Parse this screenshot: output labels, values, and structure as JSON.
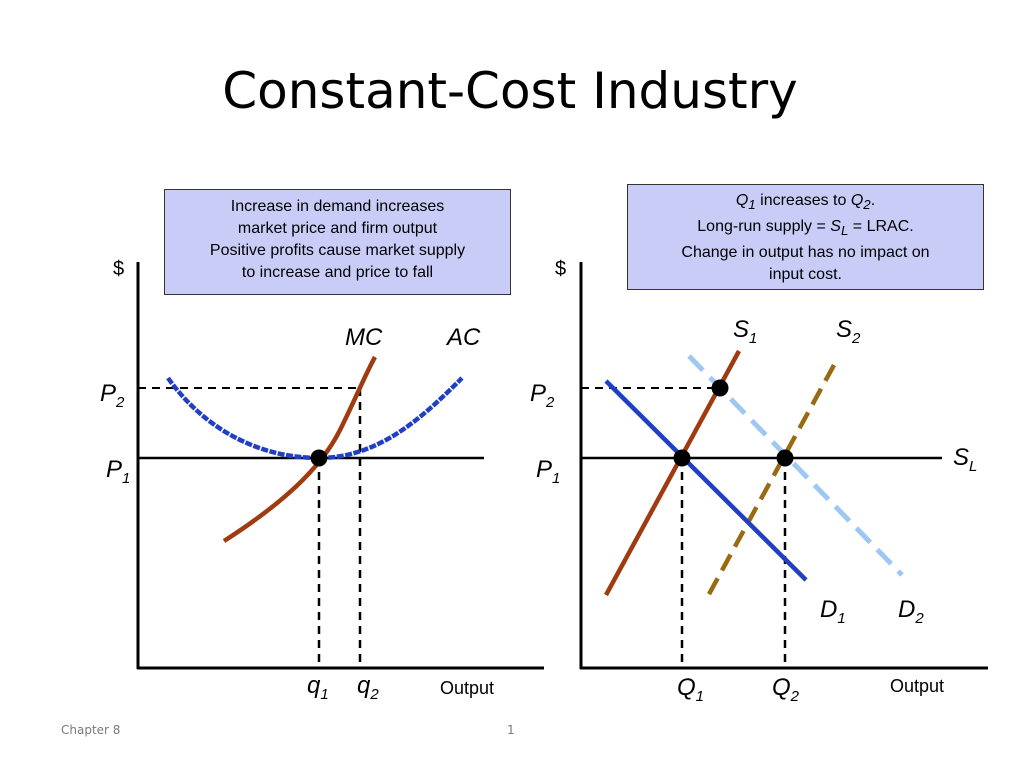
{
  "slide": {
    "title": "Constant-Cost Industry",
    "footer_left": "Chapter 8",
    "footer_page": "1"
  },
  "left_panel": {
    "callout": [
      "Increase in demand increases",
      "market price and firm output",
      "Positive profits cause market supply",
      "to increase and price to fall"
    ],
    "y_axis_label": "$",
    "x_axis_label": "Output",
    "curves": {
      "mc": "MC",
      "ac": "AC"
    },
    "prices": {
      "p2_base": "P",
      "p2_sub": "2",
      "p1_base": "P",
      "p1_sub": "1"
    },
    "quantities": {
      "q1_base": "q",
      "q1_sub": "1",
      "q2_base": "q",
      "q2_sub": "2"
    }
  },
  "right_panel": {
    "callout": {
      "line1_a_base": "Q",
      "line1_a_sub": "1",
      "line1_mid": " increases to ",
      "line1_b_base": "Q",
      "line1_b_sub": "2",
      "line1_end": ".",
      "line2_prefix": "Long-run supply = ",
      "line2_s_base": "S",
      "line2_s_sub": "L",
      "line2_suffix": " = LRAC.",
      "line3": "Change in output has no impact on",
      "line4": "input cost."
    },
    "y_axis_label": "$",
    "x_axis_label": "Output",
    "prices": {
      "p2_base": "P",
      "p2_sub": "2",
      "p1_base": "P",
      "p1_sub": "1"
    },
    "curves": {
      "s1_base": "S",
      "s1_sub": "1",
      "s2_base": "S",
      "s2_sub": "2",
      "sl_base": "S",
      "sl_sub": "L",
      "d1_base": "D",
      "d1_sub": "1",
      "d2_base": "D",
      "d2_sub": "2"
    },
    "quantities": {
      "q1_base": "Q",
      "q1_sub": "1",
      "q2_base": "Q",
      "q2_sub": "2"
    }
  },
  "colors": {
    "demand_1": "#1f3fc7",
    "demand_2": "#9ec8f2",
    "supply_1": "#a03a10",
    "supply_2": "#9a6a10",
    "ac_curve": "#1f3fc7",
    "mc_curve": "#a03a10",
    "callout_bg": "#c9ccf7"
  }
}
